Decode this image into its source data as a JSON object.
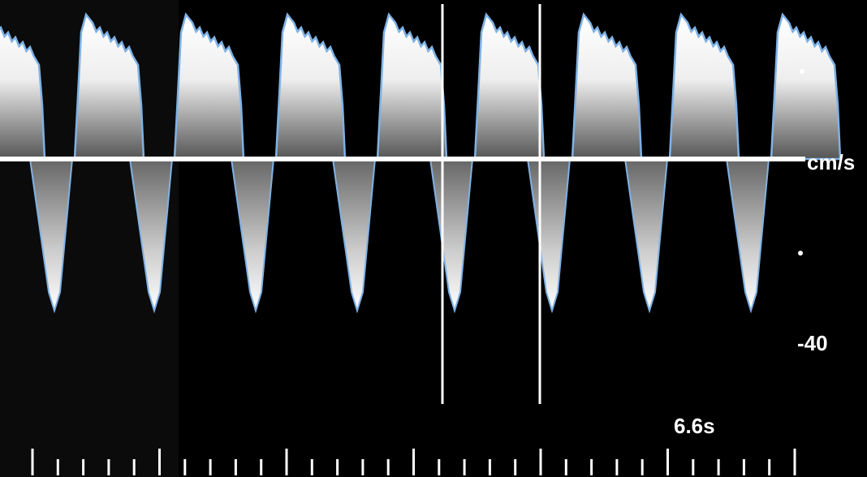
{
  "labels": {
    "unit": "cm/s",
    "scale": "-40",
    "time": "6.6s"
  }
}
